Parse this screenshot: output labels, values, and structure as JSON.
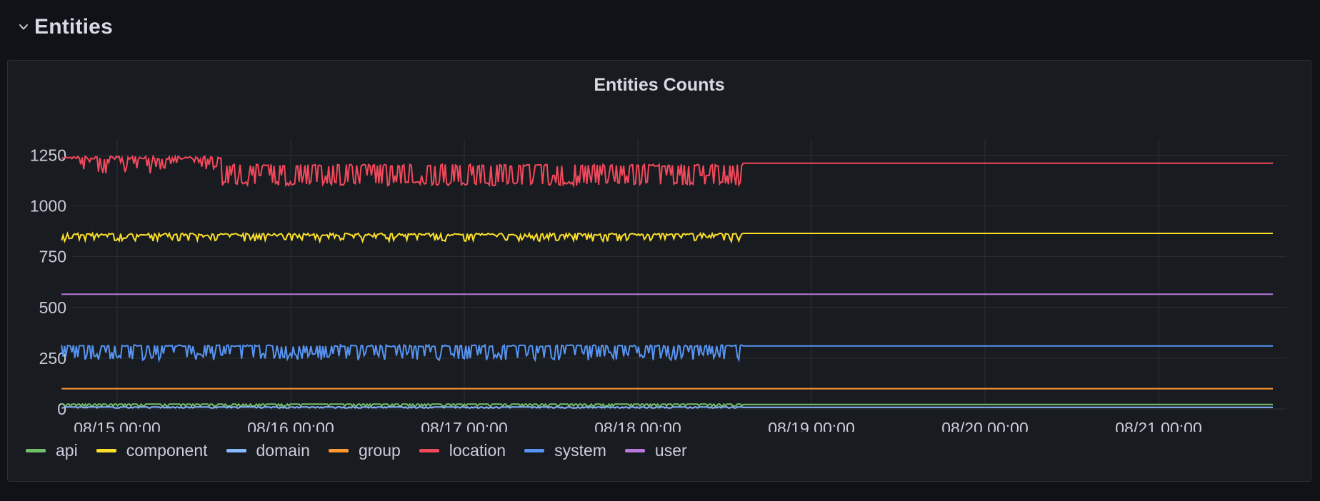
{
  "row": {
    "title": "Entities"
  },
  "panel": {
    "title": "Entities Counts"
  },
  "chart_data": {
    "type": "line",
    "title": "Entities Counts",
    "xlabel": "",
    "ylabel": "",
    "ylim": [
      0,
      1350
    ],
    "y_ticks": [
      0,
      250,
      500,
      750,
      1000,
      1250
    ],
    "x_tick_labels": [
      "08/15 00:00",
      "08/16 00:00",
      "08/17 00:00",
      "08/18 00:00",
      "08/19 00:00",
      "08/20 00:00",
      "08/21 00:00"
    ],
    "x_days_range": [
      -0.32,
      6.66
    ],
    "grid": true,
    "legend_position": "bottom-left",
    "series": [
      {
        "name": "api",
        "color": "#73bf69",
        "baseline": 22,
        "low": 15,
        "high": 24,
        "pattern": "tiny"
      },
      {
        "name": "component",
        "color": "#fade2a",
        "baseline": 865,
        "low": 825,
        "high": 880,
        "pattern": "component"
      },
      {
        "name": "domain",
        "color": "#8ab8ff",
        "baseline": 8,
        "low": 5,
        "high": 10,
        "pattern": "tiny"
      },
      {
        "name": "group",
        "color": "#ff9830",
        "baseline": 100,
        "low": 100,
        "high": 100,
        "pattern": "flat"
      },
      {
        "name": "location",
        "color": "#f2495c",
        "baseline": 1210,
        "low": 1100,
        "high": 1245,
        "pattern": "location"
      },
      {
        "name": "system",
        "color": "#5794f2",
        "baseline": 310,
        "low": 200,
        "high": 315,
        "pattern": "system"
      },
      {
        "name": "user",
        "color": "#b877d9",
        "baseline": 565,
        "low": 565,
        "high": 565,
        "pattern": "flat"
      }
    ]
  }
}
